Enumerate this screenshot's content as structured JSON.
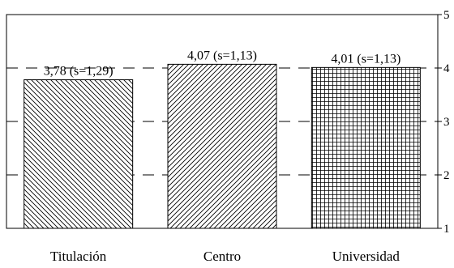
{
  "chart_data": {
    "type": "bar",
    "categories": [
      "Titulación",
      "Centro",
      "Universidad"
    ],
    "values": [
      3.78,
      4.07,
      4.01
    ],
    "data_labels": [
      "3,78 (s=1,29)",
      "4,07 (s=1,13)",
      "4,01 (s=1,13)"
    ],
    "patterns": [
      "diagonal-back",
      "diagonal-forward",
      "crosshatch"
    ],
    "ylim": [
      1,
      5
    ],
    "yticks": [
      1,
      2,
      3,
      4,
      5
    ],
    "ytick_labels": [
      "1",
      "2",
      "3",
      "4",
      "5"
    ],
    "y_axis_side": "right",
    "grid": "dashed-horizontal",
    "bar_color": "#000000",
    "grid_color": "#000000"
  }
}
